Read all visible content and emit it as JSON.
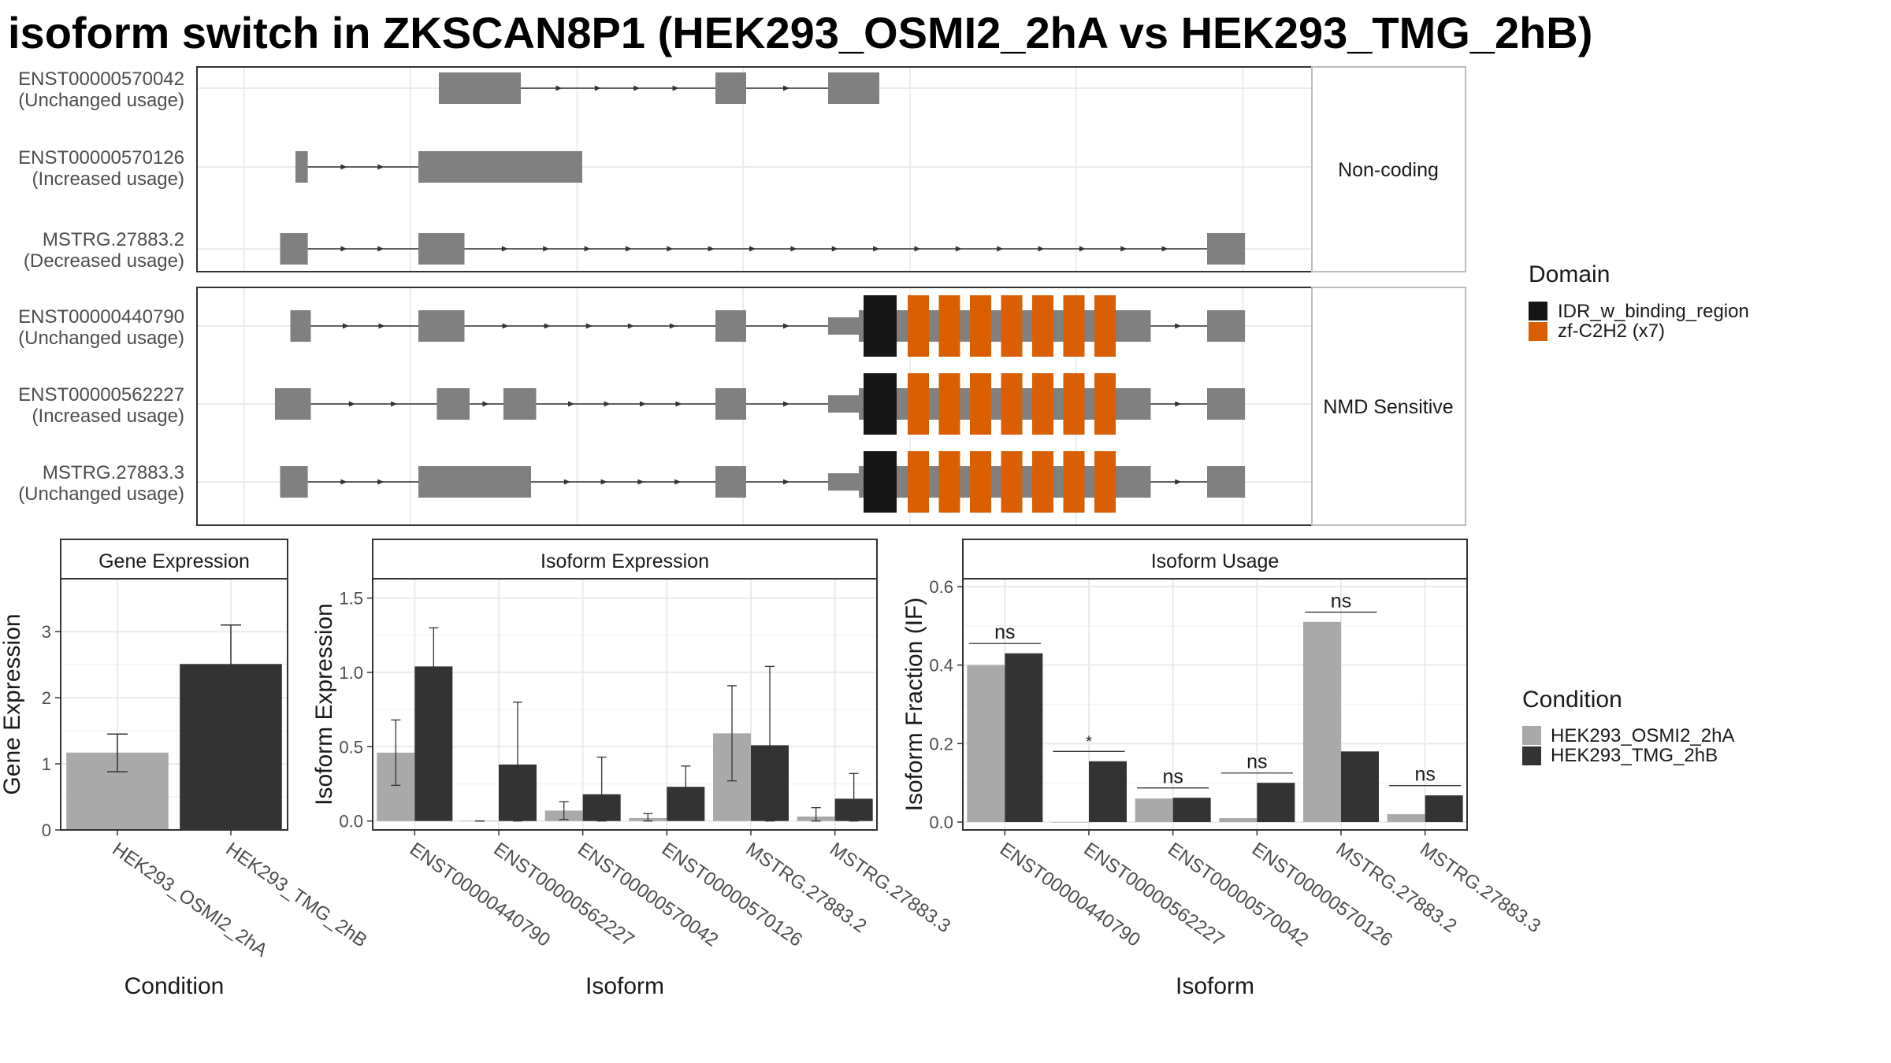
{
  "title": "isoform switch in ZKSCAN8P1 (HEK293_OSMI2_2hA vs HEK293_TMG_2hB)",
  "colors": {
    "exon": "#808080",
    "cond1": "#a9a9a9",
    "cond2": "#333333",
    "IDR_w_binding_region": "#161616",
    "zf-C2H2 (x7)": "#d95f02"
  },
  "transcript_groups": [
    {
      "label": "Non-coding",
      "transcripts": [
        {
          "id": "ENST00000570042",
          "usage": "(Unchanged usage)",
          "exons": [
            [
              0.19,
              0.27
            ],
            [
              0.46,
              0.49
            ],
            [
              0.57,
              0.62
            ]
          ],
          "domains": []
        },
        {
          "id": "ENST00000570126",
          "usage": "(Increased usage)",
          "exons": [
            [
              0.05,
              0.062
            ],
            [
              0.17,
              0.33
            ]
          ],
          "domains": []
        },
        {
          "id": "MSTRG.27883.2",
          "usage": "(Decreased usage)",
          "exons": [
            [
              0.035,
              0.062
            ],
            [
              0.17,
              0.215
            ],
            [
              0.94,
              0.977
            ]
          ],
          "domains": []
        }
      ]
    },
    {
      "label": "NMD Sensitive",
      "transcripts": [
        {
          "id": "ENST00000440790",
          "usage": "(Unchanged usage)",
          "exons": [
            [
              0.045,
              0.065
            ],
            [
              0.17,
              0.215
            ],
            [
              0.46,
              0.49
            ],
            [
              0.57,
              0.6
            ],
            [
              0.6,
              0.85
            ],
            [
              0.85,
              0.885
            ],
            [
              0.94,
              0.977
            ]
          ],
          "domains": [
            "IDR_w_binding_region",
            "zf-C2H2 (x7)"
          ]
        },
        {
          "id": "ENST00000562227",
          "usage": "(Increased usage)",
          "exons": [
            [
              0.03,
              0.065
            ],
            [
              0.188,
              0.22
            ],
            [
              0.253,
              0.285
            ],
            [
              0.46,
              0.49
            ],
            [
              0.57,
              0.6
            ],
            [
              0.6,
              0.85
            ],
            [
              0.85,
              0.885
            ],
            [
              0.94,
              0.977
            ]
          ],
          "domains": [
            "IDR_w_binding_region",
            "zf-C2H2 (x7)"
          ]
        },
        {
          "id": "MSTRG.27883.3",
          "usage": "(Unchanged usage)",
          "exons": [
            [
              0.035,
              0.062
            ],
            [
              0.17,
              0.28
            ],
            [
              0.46,
              0.49
            ],
            [
              0.57,
              0.6
            ],
            [
              0.6,
              0.85
            ],
            [
              0.85,
              0.885
            ],
            [
              0.94,
              0.977
            ]
          ],
          "domains": [
            "IDR_w_binding_region",
            "zf-C2H2 (x7)"
          ]
        }
      ]
    }
  ],
  "domain_legend": {
    "title": "Domain",
    "items": [
      "IDR_w_binding_region",
      "zf-C2H2 (x7)"
    ]
  },
  "condition_legend": {
    "title": "Condition",
    "items": [
      "HEK293_OSMI2_2hA",
      "HEK293_TMG_2hB"
    ]
  },
  "chart_data": [
    {
      "type": "bar",
      "title": "Gene Expression",
      "xlabel": "Condition",
      "ylabel": "Gene Expression",
      "categories": [
        "HEK293_OSMI2_2hA",
        "HEK293_TMG_2hB"
      ],
      "values": [
        1.17,
        2.51
      ],
      "error": [
        [
          0.88,
          1.45
        ],
        [
          1.92,
          3.1
        ]
      ],
      "ylim": [
        0,
        3.8
      ],
      "yticks": [
        0,
        1,
        2,
        3
      ]
    },
    {
      "type": "bar",
      "title": "Isoform Expression",
      "xlabel": "Isoform",
      "ylabel": "Isoform Expression",
      "categories": [
        "ENST00000440790",
        "ENST00000562227",
        "ENST00000570042",
        "ENST00000570126",
        "MSTRG.27883.2",
        "MSTRG.27883.3"
      ],
      "series": [
        {
          "name": "HEK293_OSMI2_2hA",
          "values": [
            0.46,
            0.0,
            0.07,
            0.02,
            0.59,
            0.03
          ],
          "error": [
            [
              0.24,
              0.68
            ],
            [
              0.0,
              0.0
            ],
            [
              0.01,
              0.13
            ],
            [
              0.0,
              0.05
            ],
            [
              0.27,
              0.91
            ],
            [
              0.0,
              0.09
            ]
          ]
        },
        {
          "name": "HEK293_TMG_2hB",
          "values": [
            1.04,
            0.38,
            0.18,
            0.23,
            0.51,
            0.15
          ],
          "error": [
            [
              0.78,
              1.3
            ],
            [
              0.0,
              0.8
            ],
            [
              0.0,
              0.43
            ],
            [
              0.08,
              0.37
            ],
            [
              0.0,
              1.04
            ],
            [
              0.0,
              0.32
            ]
          ]
        }
      ],
      "ylim": [
        -0.06,
        1.63
      ],
      "yticks": [
        0.0,
        0.5,
        1.0,
        1.5
      ]
    },
    {
      "type": "bar",
      "title": "Isoform Usage",
      "xlabel": "Isoform",
      "ylabel": "Isoform Fraction (IF)",
      "categories": [
        "ENST00000440790",
        "ENST00000562227",
        "ENST00000570042",
        "ENST00000570126",
        "MSTRG.27883.2",
        "MSTRG.27883.3"
      ],
      "series": [
        {
          "name": "HEK293_OSMI2_2hA",
          "values": [
            0.4,
            0.0,
            0.06,
            0.01,
            0.51,
            0.02
          ]
        },
        {
          "name": "HEK293_TMG_2hB",
          "values": [
            0.43,
            0.155,
            0.062,
            0.1,
            0.18,
            0.068
          ]
        }
      ],
      "significance": [
        "ns",
        "*",
        "ns",
        "ns",
        "ns",
        "ns"
      ],
      "ylim": [
        -0.02,
        0.62
      ],
      "yticks": [
        0.0,
        0.2,
        0.4,
        0.6
      ]
    }
  ]
}
